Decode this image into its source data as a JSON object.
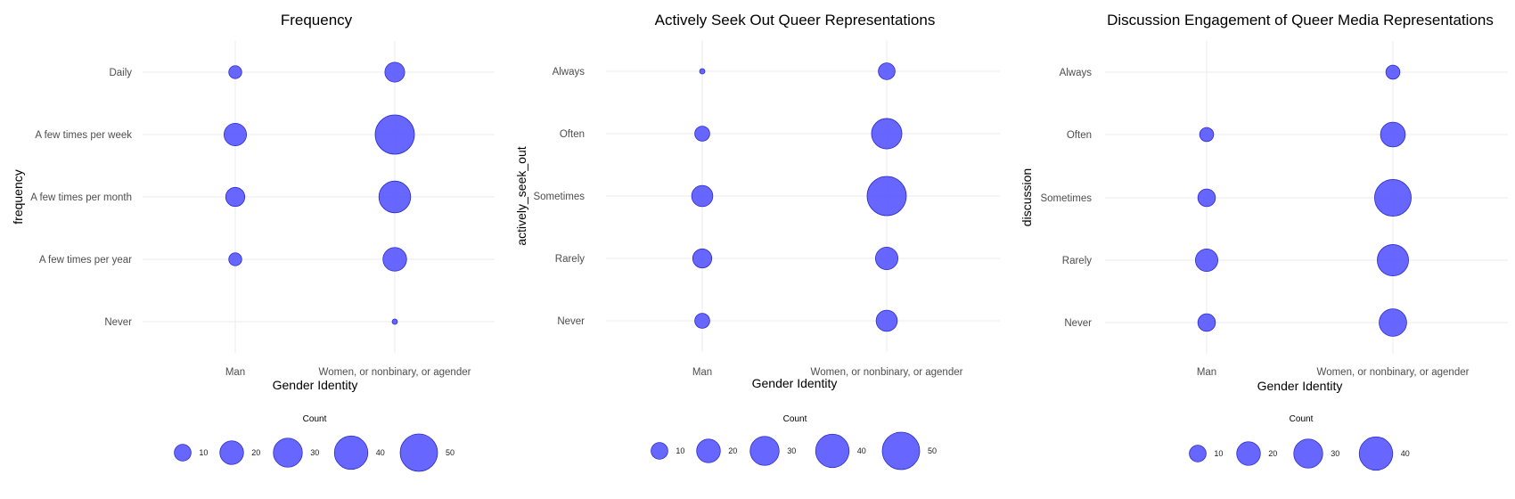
{
  "chart_data": [
    {
      "type": "scatter",
      "title": "Frequency",
      "xlabel": "Gender Identity",
      "ylabel": "frequency",
      "categories": [
        "Man",
        "Women, or nonbinary, or agender"
      ],
      "y_levels": [
        "Daily",
        "A few times per week",
        "A few times per month",
        "A few times per year",
        "Never"
      ],
      "points": [
        {
          "x": "Man",
          "y": "Daily",
          "count": 6
        },
        {
          "x": "Man",
          "y": "A few times per week",
          "count": 18
        },
        {
          "x": "Man",
          "y": "A few times per month",
          "count": 13
        },
        {
          "x": "Man",
          "y": "A few times per year",
          "count": 6
        },
        {
          "x": "Women, or nonbinary, or agender",
          "y": "Daily",
          "count": 14
        },
        {
          "x": "Women, or nonbinary, or agender",
          "y": "A few times per week",
          "count": 55
        },
        {
          "x": "Women, or nonbinary, or agender",
          "y": "A few times per month",
          "count": 36
        },
        {
          "x": "Women, or nonbinary, or agender",
          "y": "A few times per year",
          "count": 20
        },
        {
          "x": "Women, or nonbinary, or agender",
          "y": "Never",
          "count": 1
        }
      ],
      "legend": {
        "title": "Count",
        "breaks": [
          10,
          20,
          30,
          40,
          50
        ],
        "position": "bottom"
      },
      "grid": true,
      "color": "#5a5aff"
    },
    {
      "type": "scatter",
      "title": "Actively Seek Out Queer Representations",
      "xlabel": "Gender Identity",
      "ylabel": "actively_seek_out",
      "categories": [
        "Man",
        "Women, or nonbinary, or agender"
      ],
      "y_levels": [
        "Always",
        "Often",
        "Sometimes",
        "Rarely",
        "Never"
      ],
      "points": [
        {
          "x": "Man",
          "y": "Always",
          "count": 1
        },
        {
          "x": "Man",
          "y": "Often",
          "count": 8
        },
        {
          "x": "Man",
          "y": "Sometimes",
          "count": 16
        },
        {
          "x": "Man",
          "y": "Rarely",
          "count": 13
        },
        {
          "x": "Man",
          "y": "Never",
          "count": 8
        },
        {
          "x": "Women, or nonbinary, or agender",
          "y": "Always",
          "count": 10
        },
        {
          "x": "Women, or nonbinary, or agender",
          "y": "Often",
          "count": 33
        },
        {
          "x": "Women, or nonbinary, or agender",
          "y": "Sometimes",
          "count": 55
        },
        {
          "x": "Women, or nonbinary, or agender",
          "y": "Rarely",
          "count": 18
        },
        {
          "x": "Women, or nonbinary, or agender",
          "y": "Never",
          "count": 16
        }
      ],
      "legend": {
        "title": "Count",
        "breaks": [
          10,
          20,
          30,
          40,
          50
        ],
        "position": "bottom"
      },
      "grid": true,
      "color": "#5a5aff"
    },
    {
      "type": "scatter",
      "title": "Discussion Engagement of Queer Media Representations",
      "xlabel": "Gender Identity",
      "ylabel": "discussion",
      "categories": [
        "Man",
        "Women, or nonbinary, or agender"
      ],
      "y_levels": [
        "Always",
        "Often",
        "Sometimes",
        "Rarely",
        "Never"
      ],
      "points": [
        {
          "x": "Man",
          "y": "Often",
          "count": 7
        },
        {
          "x": "Man",
          "y": "Sometimes",
          "count": 11
        },
        {
          "x": "Man",
          "y": "Rarely",
          "count": 18
        },
        {
          "x": "Man",
          "y": "Never",
          "count": 11
        },
        {
          "x": "Women, or nonbinary, or agender",
          "y": "Always",
          "count": 7
        },
        {
          "x": "Women, or nonbinary, or agender",
          "y": "Often",
          "count": 22
        },
        {
          "x": "Women, or nonbinary, or agender",
          "y": "Sometimes",
          "count": 48
        },
        {
          "x": "Women, or nonbinary, or agender",
          "y": "Rarely",
          "count": 35
        },
        {
          "x": "Women, or nonbinary, or agender",
          "y": "Never",
          "count": 27
        }
      ],
      "legend": {
        "title": "Count",
        "breaks": [
          10,
          20,
          30,
          40
        ],
        "position": "bottom"
      },
      "grid": true,
      "color": "#5a5aff"
    }
  ]
}
